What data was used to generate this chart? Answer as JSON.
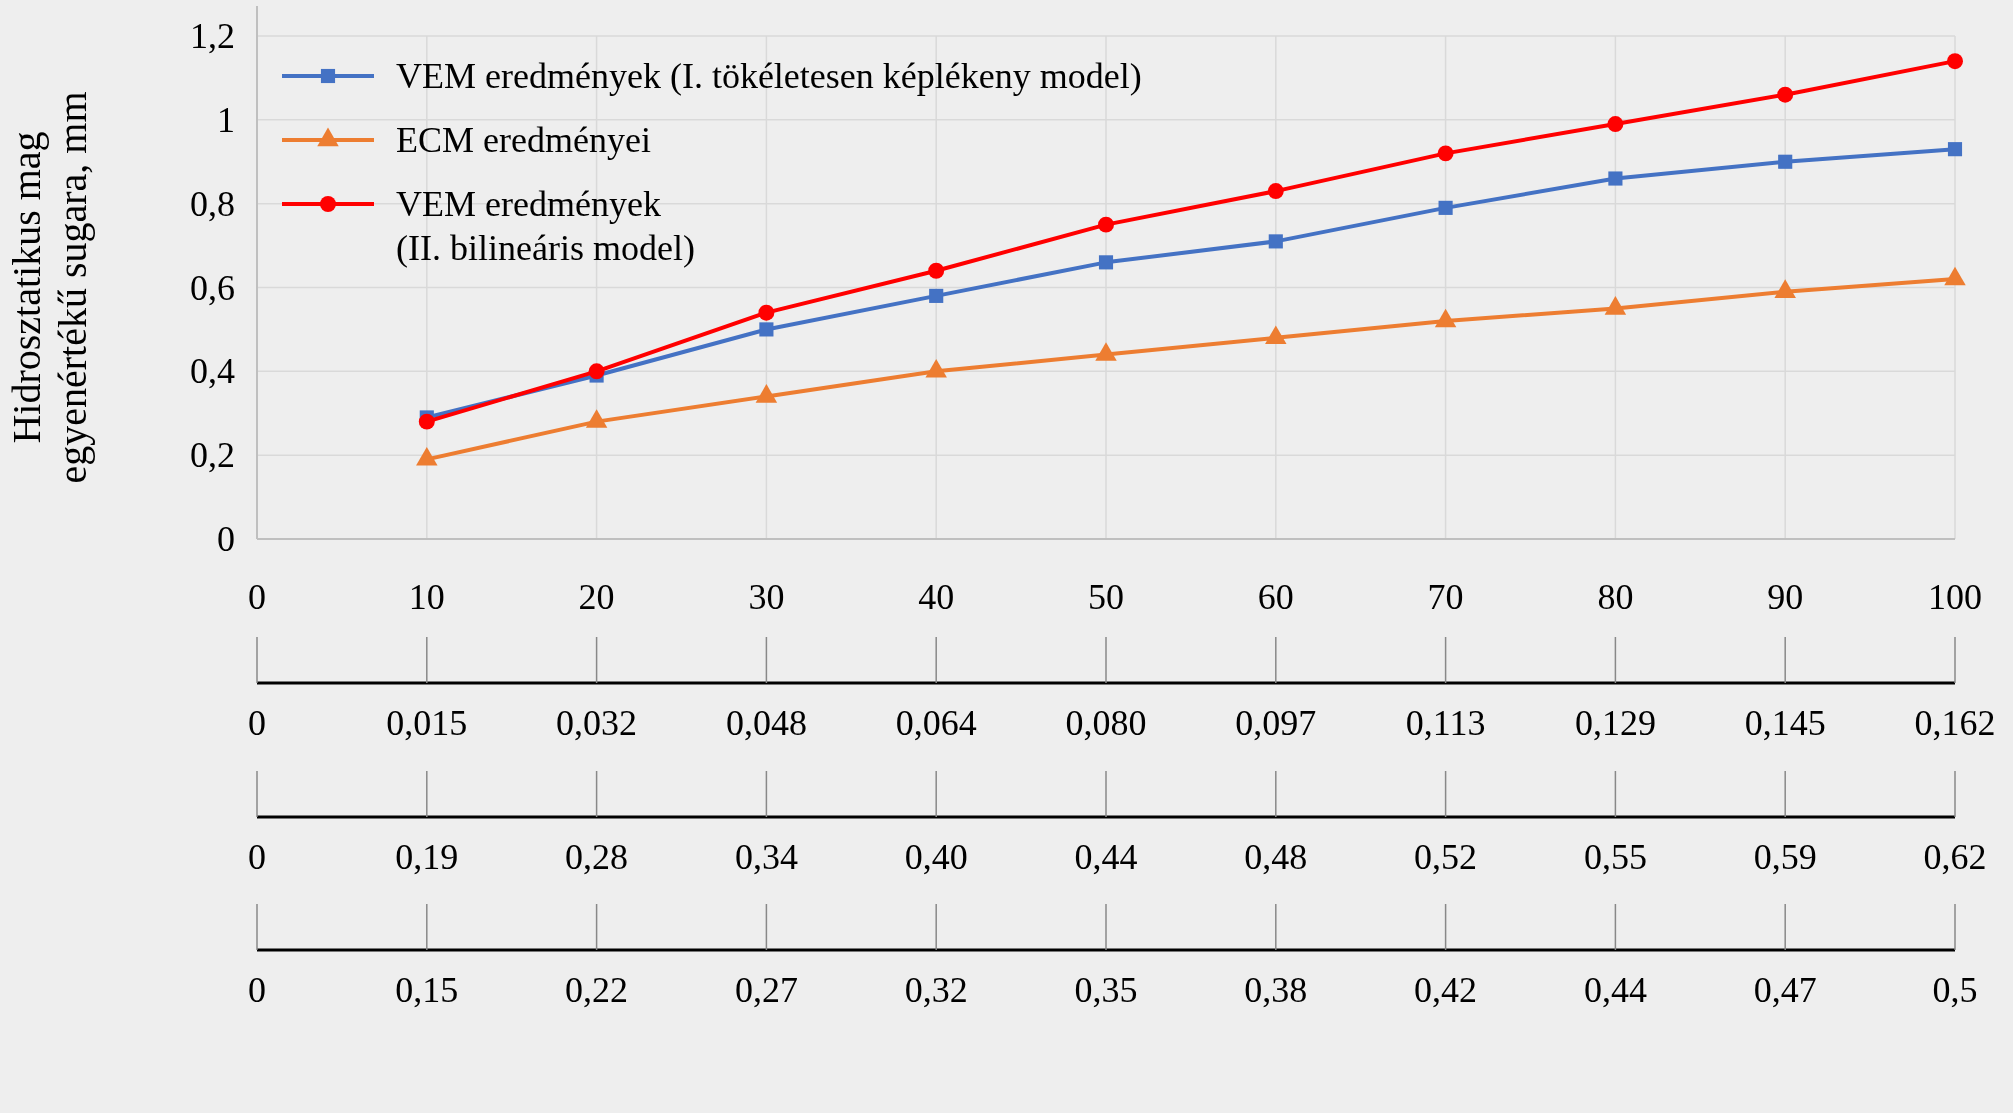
{
  "chart_data": {
    "type": "line",
    "ylabel": "Hidrosztatikus mag\negyenértékű sugara, mm",
    "x": [
      10,
      20,
      30,
      40,
      50,
      60,
      70,
      80,
      90,
      100
    ],
    "xlim": [
      0,
      100
    ],
    "xticks": [
      0,
      10,
      20,
      30,
      40,
      50,
      60,
      70,
      80,
      90,
      100
    ],
    "ylim": [
      0,
      1.2
    ],
    "yticks": [
      0,
      {
        "value": 0.2,
        "label": "0,2"
      },
      {
        "value": 0.4,
        "label": "0,4"
      },
      {
        "value": 0.6,
        "label": "0,6"
      },
      {
        "value": 0.8,
        "label": "0,8"
      },
      1,
      {
        "value": 1.2,
        "label": "1,2"
      }
    ],
    "annotations": [
      "0",
      "0,015",
      "0,032",
      "0,048",
      "0,064",
      "0,080",
      "0,097",
      "0,113",
      "0,129",
      "0,145",
      "0,162",
      "0",
      "0,19",
      "0,28",
      "0,34",
      "0,40",
      "0,44",
      "0,48",
      "0,52",
      "0,55",
      "0,59",
      "0,62",
      "0",
      "0,15",
      "0,22",
      "0,27",
      "0,32",
      "0,35",
      "0,38",
      "0,42",
      "0,44",
      "0,47",
      "0,5"
    ],
    "grid": true,
    "legend": "top left",
    "line_style": "solid",
    "series": [
      {
        "name": "VEM eredmények (I. tökéletesen képlékeny model)",
        "color": "#4472c4",
        "marker": "square",
        "values": [
          0.29,
          0.39,
          0.5,
          0.58,
          0.66,
          0.71,
          0.79,
          0.86,
          0.9,
          0.93
        ]
      },
      {
        "name": "ECM eredményei",
        "color": "#ed7d31",
        "marker": "triangle",
        "values": [
          0.19,
          0.28,
          0.34,
          0.4,
          0.44,
          0.48,
          0.52,
          0.55,
          0.59,
          0.62
        ]
      },
      {
        "name": "VEM eredmények\n(II. bilineáris model)",
        "color": "#ff0000",
        "marker": "circle",
        "values": [
          0.28,
          0.4,
          0.54,
          0.64,
          0.75,
          0.83,
          0.92,
          0.99,
          1.06,
          1.14
        ]
      }
    ]
  }
}
